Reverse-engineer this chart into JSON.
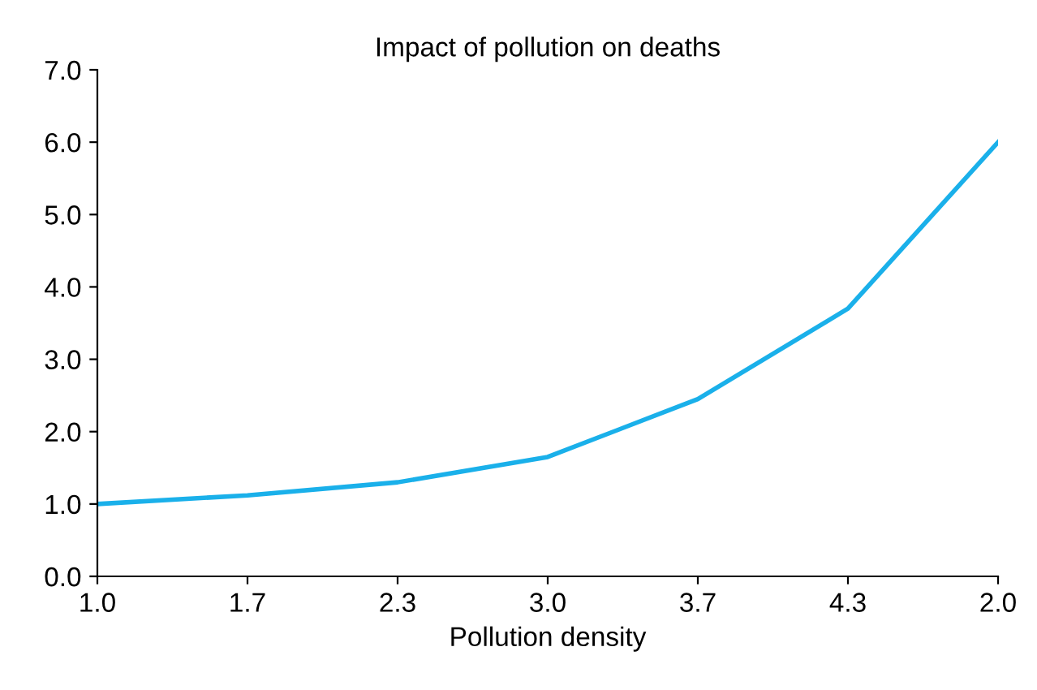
{
  "chart_data": {
    "type": "line",
    "title": "Impact of pollution on deaths",
    "xlabel": "Pollution density",
    "categories": [
      "1.0",
      "1.7",
      "2.3",
      "3.0",
      "3.7",
      "4.3",
      "2.0"
    ],
    "series": [
      {
        "color": "#1ab0ea",
        "values": [
          1.0,
          1.12,
          1.3,
          1.65,
          2.45,
          3.7,
          6.0
        ]
      }
    ],
    "ylim": [
      0,
      7
    ],
    "yticks": [
      {
        "value": 0,
        "label": "0.0"
      },
      {
        "value": 1,
        "label": "1.0"
      },
      {
        "value": 2,
        "label": "2.0"
      },
      {
        "value": 3,
        "label": "3.0"
      },
      {
        "value": 4,
        "label": "4.0"
      },
      {
        "value": 5,
        "label": "5.0"
      },
      {
        "value": 6,
        "label": "6.0"
      },
      {
        "value": 7,
        "label": "7.0"
      }
    ],
    "grid": false,
    "marker": "none",
    "line_style": "solid"
  }
}
